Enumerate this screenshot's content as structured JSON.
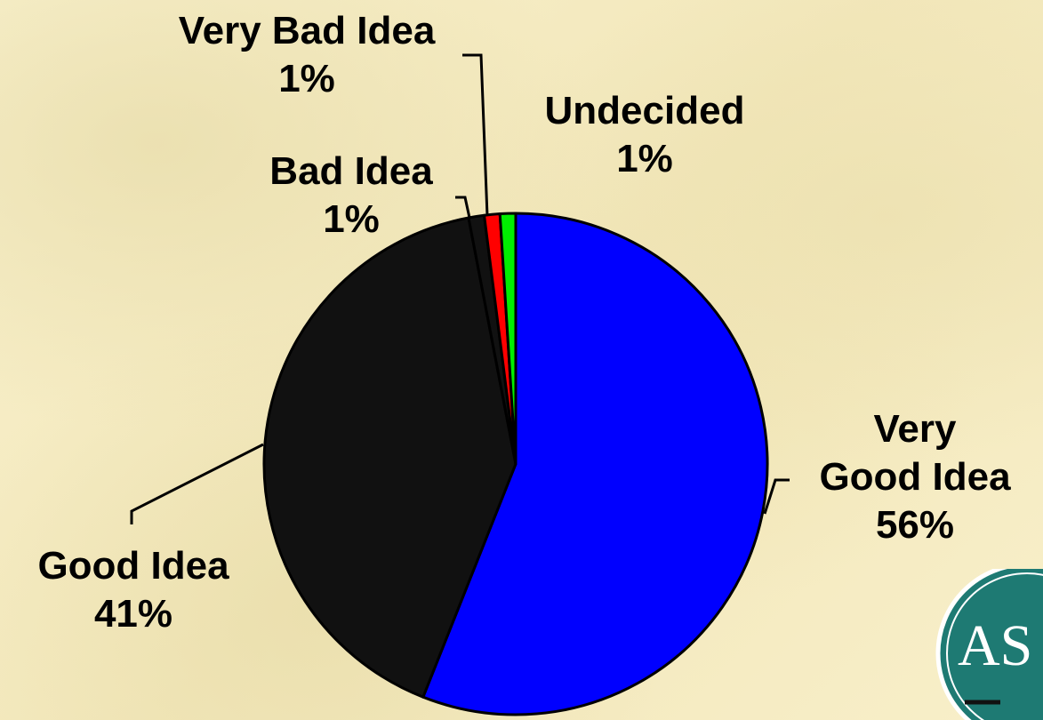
{
  "chart_data": {
    "type": "pie",
    "start_angle_deg": 0,
    "direction": "clockwise",
    "slices": [
      {
        "label_line1": "Very",
        "label_line2": "Good Idea",
        "percent_label": "56%",
        "value": 56,
        "color": "#0000ff"
      },
      {
        "label_line1": "Good Idea",
        "label_line2": "",
        "percent_label": "41%",
        "value": 41,
        "color": "#111111"
      },
      {
        "label_line1": "Bad Idea",
        "label_line2": "",
        "percent_label": "1%",
        "value": 1,
        "color": "#111111"
      },
      {
        "label_line1": "Very Bad Idea",
        "label_line2": "",
        "percent_label": "1%",
        "value": 1,
        "color": "#ff0000"
      },
      {
        "label_line1": "Undecided",
        "label_line2": "",
        "percent_label": "1%",
        "value": 1,
        "color": "#00ee00"
      }
    ]
  },
  "logo": {
    "text": "AS",
    "color": "#1e7a73"
  }
}
